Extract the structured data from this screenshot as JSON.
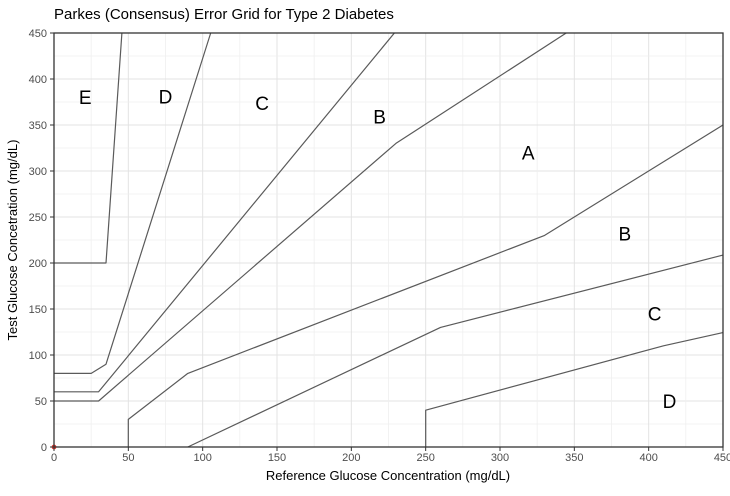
{
  "colors": {
    "background": "#ffffff",
    "panel_border": "#343434",
    "grid_major": "#e3e3e3",
    "grid_minor": "#efefef",
    "zone_line": "#5a5a5a",
    "axis_tick": "#333333",
    "tick_label": "#4d4d4d",
    "text": "#000000",
    "origin_point": "#e8392e"
  },
  "chart_data": {
    "type": "line",
    "title": "Parkes (Consensus) Error Grid for Type 2 Diabetes",
    "xlabel": "Reference Glucose Concentration (mg/dL)",
    "ylabel": "Test Glucose Concetration (mg/dL)",
    "xlim": [
      0,
      450
    ],
    "ylim": [
      0,
      450
    ],
    "xticks": [
      0,
      50,
      100,
      150,
      200,
      250,
      300,
      350,
      400,
      450
    ],
    "yticks": [
      0,
      50,
      100,
      150,
      200,
      250,
      300,
      350,
      400,
      450
    ],
    "grid": "on",
    "grid_minor_interval": 25,
    "grid_major_interval": 50,
    "legend_position": "none",
    "zone_boundaries": [
      {
        "name": "upper-a-b",
        "points": [
          [
            0,
            50
          ],
          [
            30,
            50
          ],
          [
            230,
            330
          ],
          [
            344.5,
            450
          ]
        ]
      },
      {
        "name": "upper-b-c",
        "points": [
          [
            0,
            60
          ],
          [
            30,
            60
          ],
          [
            229,
            450
          ]
        ]
      },
      {
        "name": "upper-c-d",
        "points": [
          [
            0,
            80
          ],
          [
            25,
            80
          ],
          [
            35,
            90
          ],
          [
            105.4,
            450
          ]
        ]
      },
      {
        "name": "upper-d-e",
        "points": [
          [
            0,
            200
          ],
          [
            35,
            200
          ],
          [
            45.7,
            450
          ]
        ]
      },
      {
        "name": "lower-a-b",
        "points": [
          [
            50,
            0
          ],
          [
            50,
            30
          ],
          [
            90,
            80
          ],
          [
            330,
            230
          ],
          [
            450,
            350
          ]
        ]
      },
      {
        "name": "lower-b-c",
        "points": [
          [
            90,
            0
          ],
          [
            260,
            130
          ],
          [
            450,
            208.6
          ]
        ]
      },
      {
        "name": "lower-c-d",
        "points": [
          [
            250,
            0
          ],
          [
            250,
            40
          ],
          [
            410,
            110
          ],
          [
            450,
            124.3
          ]
        ]
      }
    ],
    "zone_labels": [
      {
        "text": "E",
        "x": 21,
        "y": 380
      },
      {
        "text": "D",
        "x": 75,
        "y": 381
      },
      {
        "text": "C",
        "x": 140,
        "y": 374
      },
      {
        "text": "B",
        "x": 219,
        "y": 359
      },
      {
        "text": "A",
        "x": 319,
        "y": 320
      },
      {
        "text": "B",
        "x": 384,
        "y": 232
      },
      {
        "text": "C",
        "x": 404,
        "y": 145
      },
      {
        "text": "D",
        "x": 414,
        "y": 50
      }
    ],
    "points": [
      {
        "x": 0,
        "y": 0
      }
    ]
  }
}
